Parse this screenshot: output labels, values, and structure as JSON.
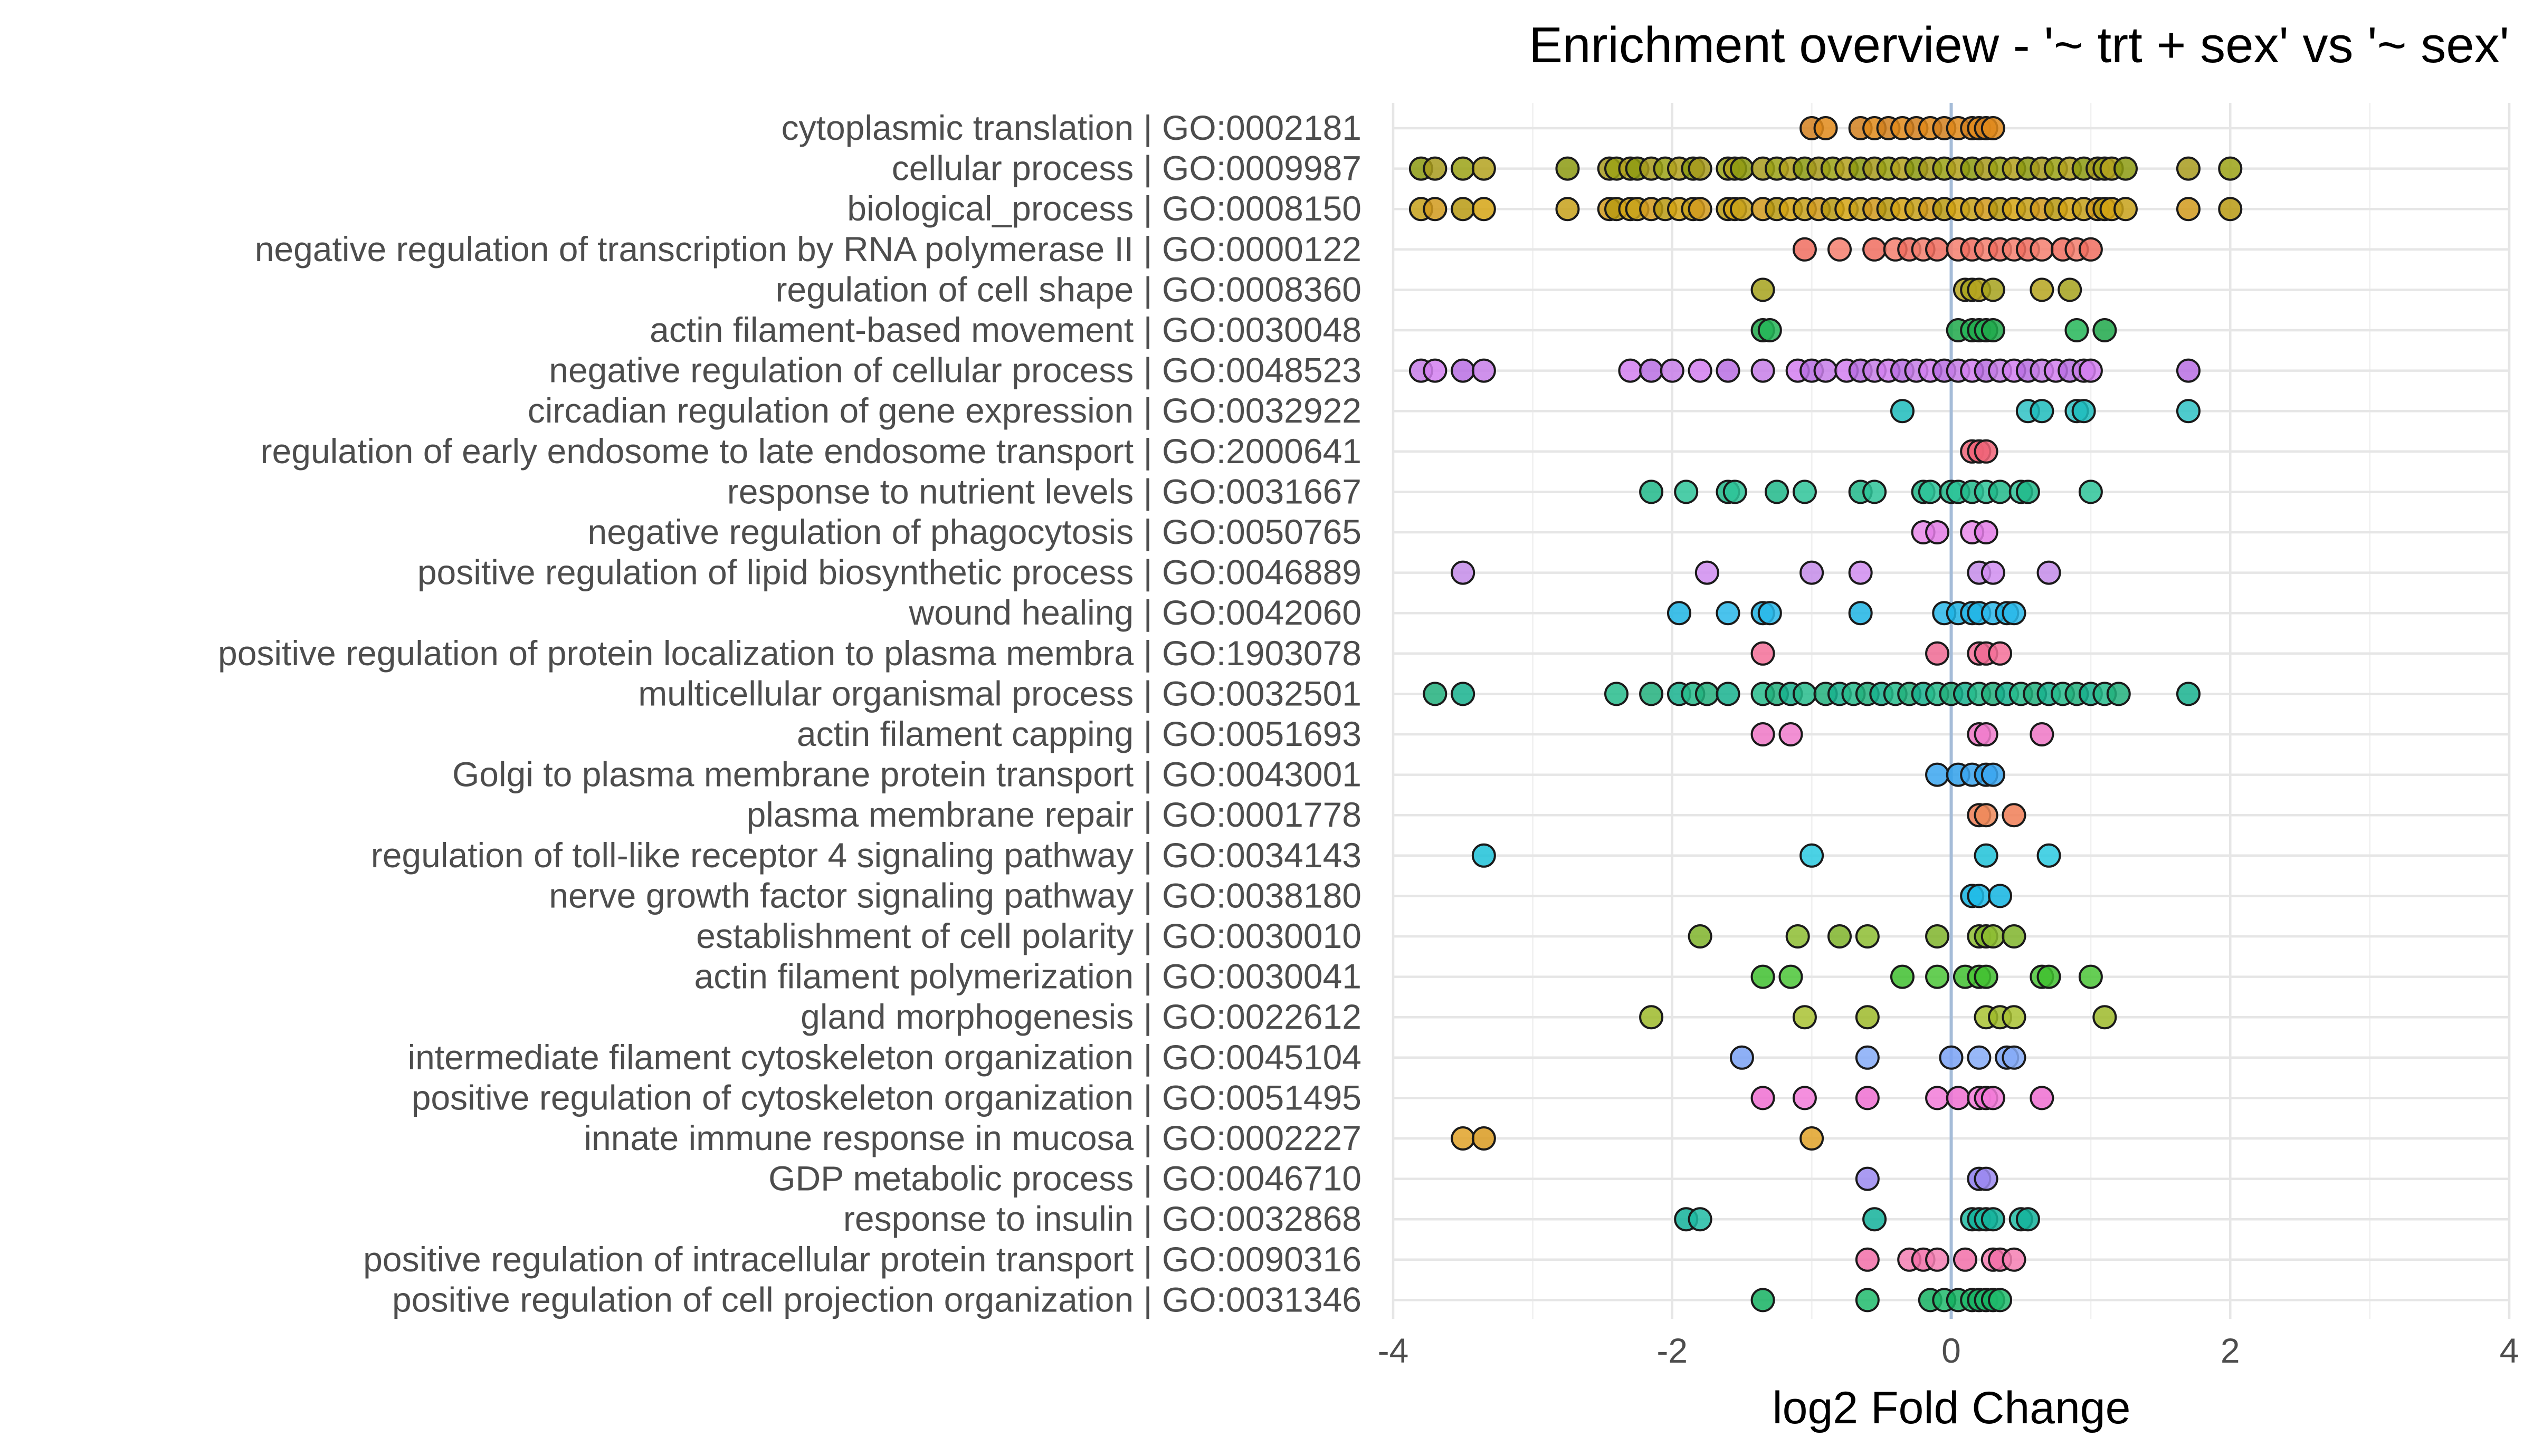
{
  "chart_data": {
    "type": "scatter",
    "title": "Enrichment overview - '~ trt + sex' vs '~ sex'",
    "xlabel": "log2 Fold Change",
    "ylabel": "",
    "xlim": [
      -4,
      4
    ],
    "xticks": [
      -4,
      -2,
      0,
      2,
      4
    ],
    "xtick_labels": [
      "-4",
      "-2",
      "0",
      "2",
      "4"
    ],
    "reference_line_x": 0,
    "reference_line_color": "#a5bcd8",
    "grid": true,
    "legend": "none",
    "point_border_color": "#1a1a1a",
    "categories": [
      "cytoplasmic translation | GO:0002181",
      "cellular process | GO:0009987",
      "biological_process | GO:0008150",
      "negative regulation of transcription by RNA polymerase II | GO:0000122",
      "regulation of cell shape | GO:0008360",
      "actin filament-based movement | GO:0030048",
      "negative regulation of cellular process | GO:0048523",
      "circadian regulation of gene expression | GO:0032922",
      "regulation of early endosome to late endosome transport | GO:2000641",
      "response to nutrient levels | GO:0031667",
      "negative regulation of phagocytosis | GO:0050765",
      "positive regulation of lipid biosynthetic process | GO:0046889",
      "wound healing | GO:0042060",
      "positive regulation of protein localization to plasma membra | GO:1903078",
      "multicellular organismal process | GO:0032501",
      "actin filament capping | GO:0051693",
      "Golgi to plasma membrane protein transport | GO:0043001",
      "plasma membrane repair | GO:0001778",
      "regulation of toll-like receptor 4 signaling pathway | GO:0034143",
      "nerve growth factor signaling pathway | GO:0038180",
      "establishment of cell polarity | GO:0030010",
      "actin filament polymerization | GO:0030041",
      "gland morphogenesis | GO:0022612",
      "intermediate filament cytoskeleton organization | GO:0045104",
      "positive regulation of cytoskeleton organization | GO:0051495",
      "innate immune response in mucosa | GO:0002227",
      "GDP metabolic process | GO:0046710",
      "response to insulin | GO:0032868",
      "positive regulation of intracellular protein transport | GO:0090316",
      "positive regulation of cell projection organization | GO:0031346"
    ],
    "series": [
      {
        "category": "cytoplasmic translation | GO:0002181",
        "colors": [
          "#d2801f",
          "#e08a1a"
        ],
        "x": [
          -1.0,
          -0.9,
          -0.65,
          -0.55,
          -0.45,
          -0.35,
          -0.25,
          -0.15,
          -0.05,
          0.05,
          0.15,
          0.2,
          0.25,
          0.3
        ]
      },
      {
        "category": "cellular process | GO:0009987",
        "colors": [
          "#8c9a10",
          "#a89b1d",
          "#9ba215",
          "#b4a21e"
        ],
        "x": [
          -3.8,
          -3.7,
          -3.5,
          -3.35,
          -2.75,
          -2.45,
          -2.4,
          -2.3,
          -2.25,
          -2.15,
          -2.05,
          -1.95,
          -1.85,
          -1.8,
          -1.6,
          -1.55,
          -1.5,
          -1.35,
          -1.25,
          -1.15,
          -1.05,
          -0.95,
          -0.85,
          -0.75,
          -0.65,
          -0.55,
          -0.45,
          -0.35,
          -0.25,
          -0.15,
          -0.05,
          0.05,
          0.15,
          0.25,
          0.35,
          0.45,
          0.55,
          0.65,
          0.75,
          0.85,
          0.95,
          1.05,
          1.1,
          1.15,
          1.25,
          1.7,
          2.0
        ]
      },
      {
        "category": "biological_process | GO:0008150",
        "colors": [
          "#c7a11a",
          "#d19a1c",
          "#b89a12",
          "#d5a514"
        ],
        "x": [
          -3.8,
          -3.7,
          -3.5,
          -3.35,
          -2.75,
          -2.45,
          -2.4,
          -2.3,
          -2.25,
          -2.15,
          -2.05,
          -1.95,
          -1.85,
          -1.8,
          -1.6,
          -1.55,
          -1.5,
          -1.35,
          -1.25,
          -1.15,
          -1.05,
          -0.95,
          -0.85,
          -0.75,
          -0.65,
          -0.55,
          -0.45,
          -0.35,
          -0.25,
          -0.15,
          -0.05,
          0.05,
          0.15,
          0.25,
          0.35,
          0.45,
          0.55,
          0.65,
          0.75,
          0.85,
          0.95,
          1.05,
          1.1,
          1.15,
          1.25,
          1.7,
          2.0
        ]
      },
      {
        "category": "negative regulation of transcription by RNA polymerase II | GO:0000122",
        "colors": [
          "#f06d5f",
          "#f57f6f"
        ],
        "x": [
          -1.05,
          -0.8,
          -0.55,
          -0.4,
          -0.3,
          -0.2,
          -0.1,
          0.05,
          0.15,
          0.25,
          0.35,
          0.45,
          0.55,
          0.65,
          0.8,
          0.9,
          1.0
        ]
      },
      {
        "category": "regulation of cell shape | GO:0008360",
        "colors": [
          "#a6a21c",
          "#b6a51e"
        ],
        "x": [
          -1.35,
          0.1,
          0.15,
          0.2,
          0.3,
          0.65,
          0.85
        ]
      },
      {
        "category": "actin filament-based movement | GO:0030048",
        "colors": [
          "#1ea84a",
          "#25b658"
        ],
        "x": [
          -1.35,
          -1.3,
          0.05,
          0.15,
          0.2,
          0.25,
          0.3,
          0.9,
          1.1
        ]
      },
      {
        "category": "negative regulation of cellular process | GO:0048523",
        "colors": [
          "#c77ee8",
          "#d27ff0",
          "#b86fe3"
        ],
        "x": [
          -3.8,
          -3.7,
          -3.5,
          -3.35,
          -2.3,
          -2.15,
          -2.0,
          -1.8,
          -1.6,
          -1.35,
          -1.1,
          -1.0,
          -0.9,
          -0.75,
          -0.65,
          -0.55,
          -0.45,
          -0.35,
          -0.25,
          -0.15,
          -0.05,
          0.05,
          0.15,
          0.25,
          0.35,
          0.45,
          0.55,
          0.65,
          0.75,
          0.85,
          0.95,
          1.0,
          1.7
        ]
      },
      {
        "category": "circadian regulation of gene expression | GO:0032922",
        "colors": [
          "#1dbcbc",
          "#2fc2c4"
        ],
        "x": [
          -0.35,
          0.55,
          0.65,
          0.9,
          0.95,
          1.7
        ]
      },
      {
        "category": "regulation of early endosome to late endosome transport | GO:2000641",
        "colors": [
          "#f06478"
        ],
        "x": [
          0.15,
          0.2,
          0.25
        ]
      },
      {
        "category": "response to nutrient levels | GO:0031667",
        "colors": [
          "#20b889",
          "#2ec499"
        ],
        "x": [
          -2.15,
          -1.9,
          -1.6,
          -1.55,
          -1.25,
          -1.05,
          -0.65,
          -0.55,
          -0.2,
          -0.15,
          0.0,
          0.05,
          0.15,
          0.25,
          0.35,
          0.5,
          0.55,
          1.0
        ]
      },
      {
        "category": "negative regulation of phagocytosis | GO:0050765",
        "colors": [
          "#e98bea",
          "#e37de6"
        ],
        "x": [
          -0.2,
          -0.1,
          0.15,
          0.25
        ]
      },
      {
        "category": "positive regulation of lipid biosynthetic process | GO:0046889",
        "colors": [
          "#c48ce9",
          "#d08df0"
        ],
        "x": [
          -3.5,
          -1.75,
          -1.0,
          -0.65,
          0.2,
          0.3,
          0.7
        ]
      },
      {
        "category": "wound healing | GO:0042060",
        "colors": [
          "#1fb4e4",
          "#2ab9ea"
        ],
        "x": [
          -1.95,
          -1.6,
          -1.35,
          -1.3,
          -0.65,
          -0.05,
          0.05,
          0.15,
          0.2,
          0.3,
          0.4,
          0.45
        ]
      },
      {
        "category": "positive regulation of protein localization to plasma membra | GO:1903078",
        "colors": [
          "#f47099",
          "#ef6a93"
        ],
        "x": [
          -1.35,
          -0.1,
          0.2,
          0.25,
          0.35
        ]
      },
      {
        "category": "multicellular organismal process | GO:0032501",
        "colors": [
          "#22b07d",
          "#18b28e",
          "#27bc8c"
        ],
        "x": [
          -3.7,
          -3.5,
          -2.4,
          -2.15,
          -1.95,
          -1.85,
          -1.75,
          -1.6,
          -1.35,
          -1.25,
          -1.15,
          -1.05,
          -0.9,
          -0.8,
          -0.7,
          -0.6,
          -0.5,
          -0.4,
          -0.3,
          -0.2,
          -0.1,
          0.0,
          0.1,
          0.2,
          0.3,
          0.4,
          0.5,
          0.6,
          0.7,
          0.8,
          0.9,
          1.0,
          1.1,
          1.2,
          1.7
        ]
      },
      {
        "category": "actin filament capping | GO:0051693",
        "colors": [
          "#ef77c6",
          "#f07dcc"
        ],
        "x": [
          -1.35,
          -1.15,
          0.2,
          0.25,
          0.65
        ]
      },
      {
        "category": "Golgi to plasma membrane protein transport | GO:0043001",
        "colors": [
          "#3ba6f0",
          "#30a0ea"
        ],
        "x": [
          -0.1,
          0.05,
          0.15,
          0.25,
          0.3
        ]
      },
      {
        "category": "plasma membrane repair | GO:0001778",
        "colors": [
          "#f07e56",
          "#ef8a5b"
        ],
        "x": [
          0.2,
          0.25,
          0.45
        ]
      },
      {
        "category": "regulation of toll-like receptor 4 signaling pathway | GO:0034143",
        "colors": [
          "#1ec2d8",
          "#2ccae0"
        ],
        "x": [
          -3.35,
          -1.0,
          0.25,
          0.7
        ]
      },
      {
        "category": "nerve growth factor signaling pathway | GO:0038180",
        "colors": [
          "#12b4e0",
          "#1ebbe8"
        ],
        "x": [
          0.15,
          0.2,
          0.35
        ]
      },
      {
        "category": "establishment of cell polarity | GO:0030010",
        "colors": [
          "#7fb42a",
          "#8dbd31"
        ],
        "x": [
          -1.8,
          -1.1,
          -0.8,
          -0.6,
          -0.1,
          0.2,
          0.25,
          0.3,
          0.45
        ]
      },
      {
        "category": "actin filament polymerization | GO:0030041",
        "colors": [
          "#3fbf2f",
          "#4bc637"
        ],
        "x": [
          -1.35,
          -1.15,
          -0.35,
          -0.1,
          0.1,
          0.2,
          0.25,
          0.65,
          0.7,
          1.0
        ]
      },
      {
        "category": "gland morphogenesis | GO:0022612",
        "colors": [
          "#9dba2a",
          "#a9c232"
        ],
        "x": [
          -2.15,
          -1.05,
          -0.6,
          0.25,
          0.35,
          0.45,
          1.1
        ]
      },
      {
        "category": "intermediate filament cytoskeleton organization | GO:0045104",
        "colors": [
          "#7aa2f4",
          "#86acf7"
        ],
        "x": [
          -1.5,
          -0.6,
          0.0,
          0.2,
          0.4,
          0.45
        ]
      },
      {
        "category": "positive regulation of cytoskeleton organization | GO:0051495",
        "colors": [
          "#ee6fd1",
          "#f27bd8"
        ],
        "x": [
          -1.35,
          -1.05,
          -0.6,
          -0.1,
          0.05,
          0.2,
          0.25,
          0.3,
          0.65
        ]
      },
      {
        "category": "innate immune response in mucosa | GO:0002227",
        "colors": [
          "#e0a228",
          "#d99a20"
        ],
        "x": [
          -3.5,
          -3.35,
          -1.0
        ]
      },
      {
        "category": "GDP metabolic process | GO:0046710",
        "colors": [
          "#9b8af0",
          "#8d7ded"
        ],
        "x": [
          -0.6,
          0.2,
          0.25
        ]
      },
      {
        "category": "response to insulin | GO:0032868",
        "colors": [
          "#13b29a",
          "#20bca4"
        ],
        "x": [
          -1.9,
          -1.8,
          -0.55,
          0.15,
          0.2,
          0.25,
          0.3,
          0.5,
          0.55
        ]
      },
      {
        "category": "positive regulation of intracellular protein transport | GO:0090316",
        "colors": [
          "#f26fa8",
          "#f57fb3"
        ],
        "x": [
          -0.6,
          -0.3,
          -0.2,
          -0.1,
          0.1,
          0.3,
          0.35,
          0.45
        ]
      },
      {
        "category": "positive regulation of cell projection organization | GO:0031346",
        "colors": [
          "#15b262",
          "#20bb6c"
        ],
        "x": [
          -1.35,
          -0.6,
          -0.15,
          -0.05,
          0.05,
          0.15,
          0.2,
          0.25,
          0.3,
          0.35
        ]
      }
    ]
  }
}
